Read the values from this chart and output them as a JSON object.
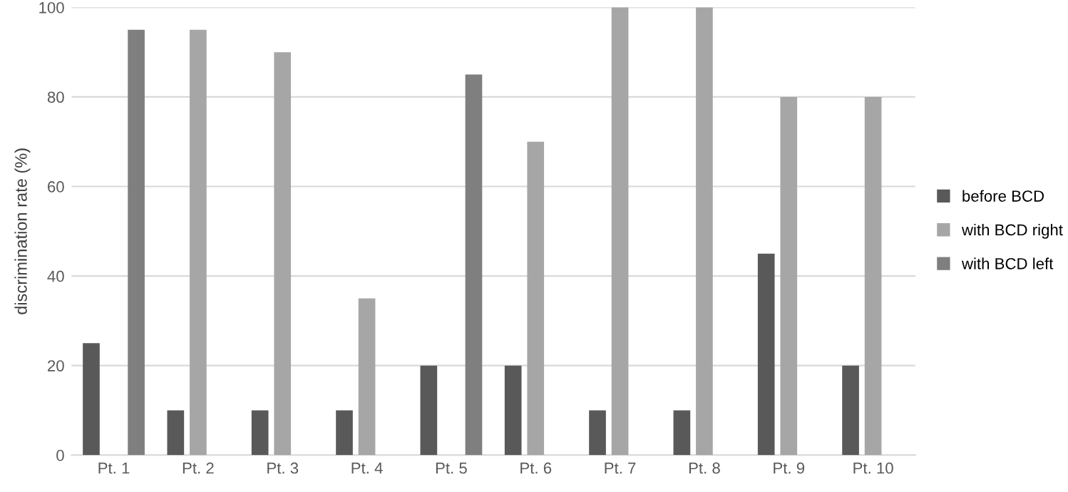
{
  "chart_data": {
    "type": "bar",
    "ylabel": "discrimination rate (%)",
    "categories": [
      "Pt. 1",
      "Pt. 2",
      "Pt. 3",
      "Pt. 4",
      "Pt. 5",
      "Pt. 6",
      "Pt. 7",
      "Pt. 8",
      "Pt. 9",
      "Pt. 10"
    ],
    "series": [
      {
        "name": "before BCD",
        "color": "#595959",
        "values": [
          25,
          10,
          10,
          10,
          20,
          20,
          10,
          10,
          45,
          20
        ]
      },
      {
        "name": "with BCD right",
        "color": "#a6a6a6",
        "values": [
          null,
          95,
          90,
          35,
          null,
          70,
          100,
          100,
          80,
          80
        ]
      },
      {
        "name": "with BCD left",
        "color": "#7f7f7f",
        "values": [
          95,
          null,
          null,
          null,
          85,
          null,
          null,
          null,
          null,
          null
        ]
      }
    ],
    "ylim": [
      0,
      100
    ],
    "yticks": [
      0,
      20,
      40,
      60,
      80,
      100
    ],
    "grid": "y",
    "legend": "right"
  }
}
